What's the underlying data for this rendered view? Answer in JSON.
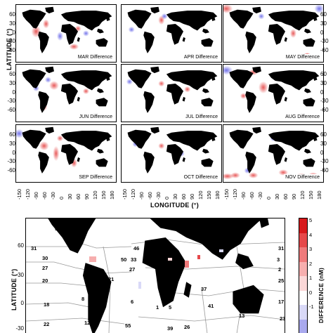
{
  "top_grid": {
    "y_axis_title": "LATITUDE (°)",
    "x_axis_title": "LONGITUDE (°)",
    "y_ticks": [
      "60",
      "30",
      "0",
      "-30",
      "-60"
    ],
    "x_ticks": [
      "-150",
      "-120",
      "-90",
      "-60",
      "-30",
      "0",
      "30",
      "60",
      "90",
      "120",
      "150",
      "180"
    ],
    "panels": [
      {
        "label": "MAR Difference"
      },
      {
        "label": "APR Difference"
      },
      {
        "label": "MAY Difference"
      },
      {
        "label": "JUN Difference"
      },
      {
        "label": "JUL Difference"
      },
      {
        "label": "AUG Difference"
      },
      {
        "label": "SEP Difference"
      },
      {
        "label": "OCT Difference"
      },
      {
        "label": "NOV Difference"
      }
    ]
  },
  "bottom_map": {
    "y_axis_title": "LATITUDE (°)",
    "y_ticks": [
      "60",
      "30",
      "0",
      "-30"
    ],
    "region_numbers": [
      "56",
      "31",
      "46",
      "42",
      "43",
      "31",
      "50",
      "33",
      "3",
      "30",
      "2",
      "27",
      "27",
      "20",
      "25",
      "21",
      "14",
      "18",
      "8",
      "6",
      "37",
      "1",
      "5",
      "17",
      "41",
      "22",
      "55",
      "12",
      "39",
      "23",
      "26",
      "13"
    ],
    "colorbar": {
      "title": "DIFFERENCE (nM)",
      "ticks": [
        "5",
        "4",
        "3",
        "2",
        "1",
        "0",
        "-1"
      ],
      "colors": [
        "#d7191c",
        "#e6484a",
        "#ef7a7b",
        "#f6aeae",
        "#fbd7d7",
        "#ffffff",
        "#d9d9f7",
        "#a9a9ee"
      ]
    }
  },
  "colors": {
    "land": "#000000",
    "positive": "#e33a3a",
    "negative": "#5a5ae6"
  }
}
